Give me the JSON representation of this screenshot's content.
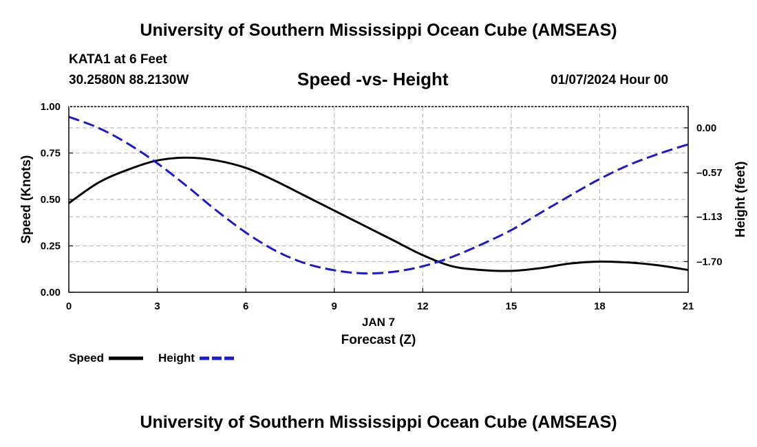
{
  "header": {
    "title": "University of Southern Mississippi Ocean Cube (AMSEAS)",
    "station": "KATA1 at 6 Feet",
    "coordinates": "30.2580N  88.2130W",
    "date": "01/07/2024 Hour 00"
  },
  "footer": {
    "title": "University of Southern Mississippi Ocean Cube (AMSEAS)"
  },
  "legend": {
    "speed_label": "Speed",
    "height_label": "Height"
  },
  "chart_data": {
    "type": "line",
    "title": "Speed -vs- Height",
    "xlabel": "Forecast (Z)",
    "xlabel_date": "JAN 7",
    "ylabel": "Speed (Knots)",
    "y2label": "Height (feet)",
    "xlim": [
      0,
      21
    ],
    "ylim": [
      0,
      1
    ],
    "y2lim": [
      -2.09,
      0.27
    ],
    "x_ticks": [
      0,
      3,
      6,
      9,
      12,
      15,
      18,
      21
    ],
    "x_tick_labels": [
      "0",
      "3",
      "6",
      "9",
      "12",
      "15",
      "18",
      "21"
    ],
    "y_ticks": [
      0,
      0.25,
      0.5,
      0.75,
      1.0
    ],
    "y_tick_labels": [
      "0.00",
      "0.25",
      "0.50",
      "0.75",
      "1.00"
    ],
    "y2_ticks": [
      0.0,
      -0.57,
      -1.13,
      -1.7
    ],
    "y2_tick_labels": [
      "0.00",
      "–0.57",
      "–1.13",
      "–1.70"
    ],
    "grid": true,
    "colors": {
      "speed": "#000000",
      "height": "#1a1acc",
      "grid": "#bdbdbd"
    },
    "series": [
      {
        "name": "Speed",
        "axis": "left",
        "style": "solid",
        "x": [
          0,
          1,
          2,
          3,
          4,
          5,
          6,
          7,
          8,
          9,
          10,
          11,
          12,
          13,
          14,
          15,
          16,
          17,
          18,
          19,
          20,
          21
        ],
        "values": [
          0.48,
          0.59,
          0.66,
          0.71,
          0.725,
          0.71,
          0.67,
          0.6,
          0.52,
          0.44,
          0.36,
          0.28,
          0.2,
          0.14,
          0.12,
          0.115,
          0.13,
          0.155,
          0.165,
          0.16,
          0.145,
          0.12
        ]
      },
      {
        "name": "Height",
        "axis": "right",
        "style": "dashed",
        "x": [
          0,
          1,
          2,
          3,
          4,
          5,
          6,
          7,
          8,
          9,
          10,
          11,
          12,
          13,
          14,
          15,
          16,
          17,
          18,
          19,
          20,
          21
        ],
        "values": [
          0.14,
          0.0,
          -0.2,
          -0.45,
          -0.74,
          -1.05,
          -1.33,
          -1.56,
          -1.72,
          -1.81,
          -1.85,
          -1.83,
          -1.76,
          -1.64,
          -1.48,
          -1.3,
          -1.08,
          -0.86,
          -0.65,
          -0.47,
          -0.33,
          -0.21
        ]
      }
    ]
  }
}
